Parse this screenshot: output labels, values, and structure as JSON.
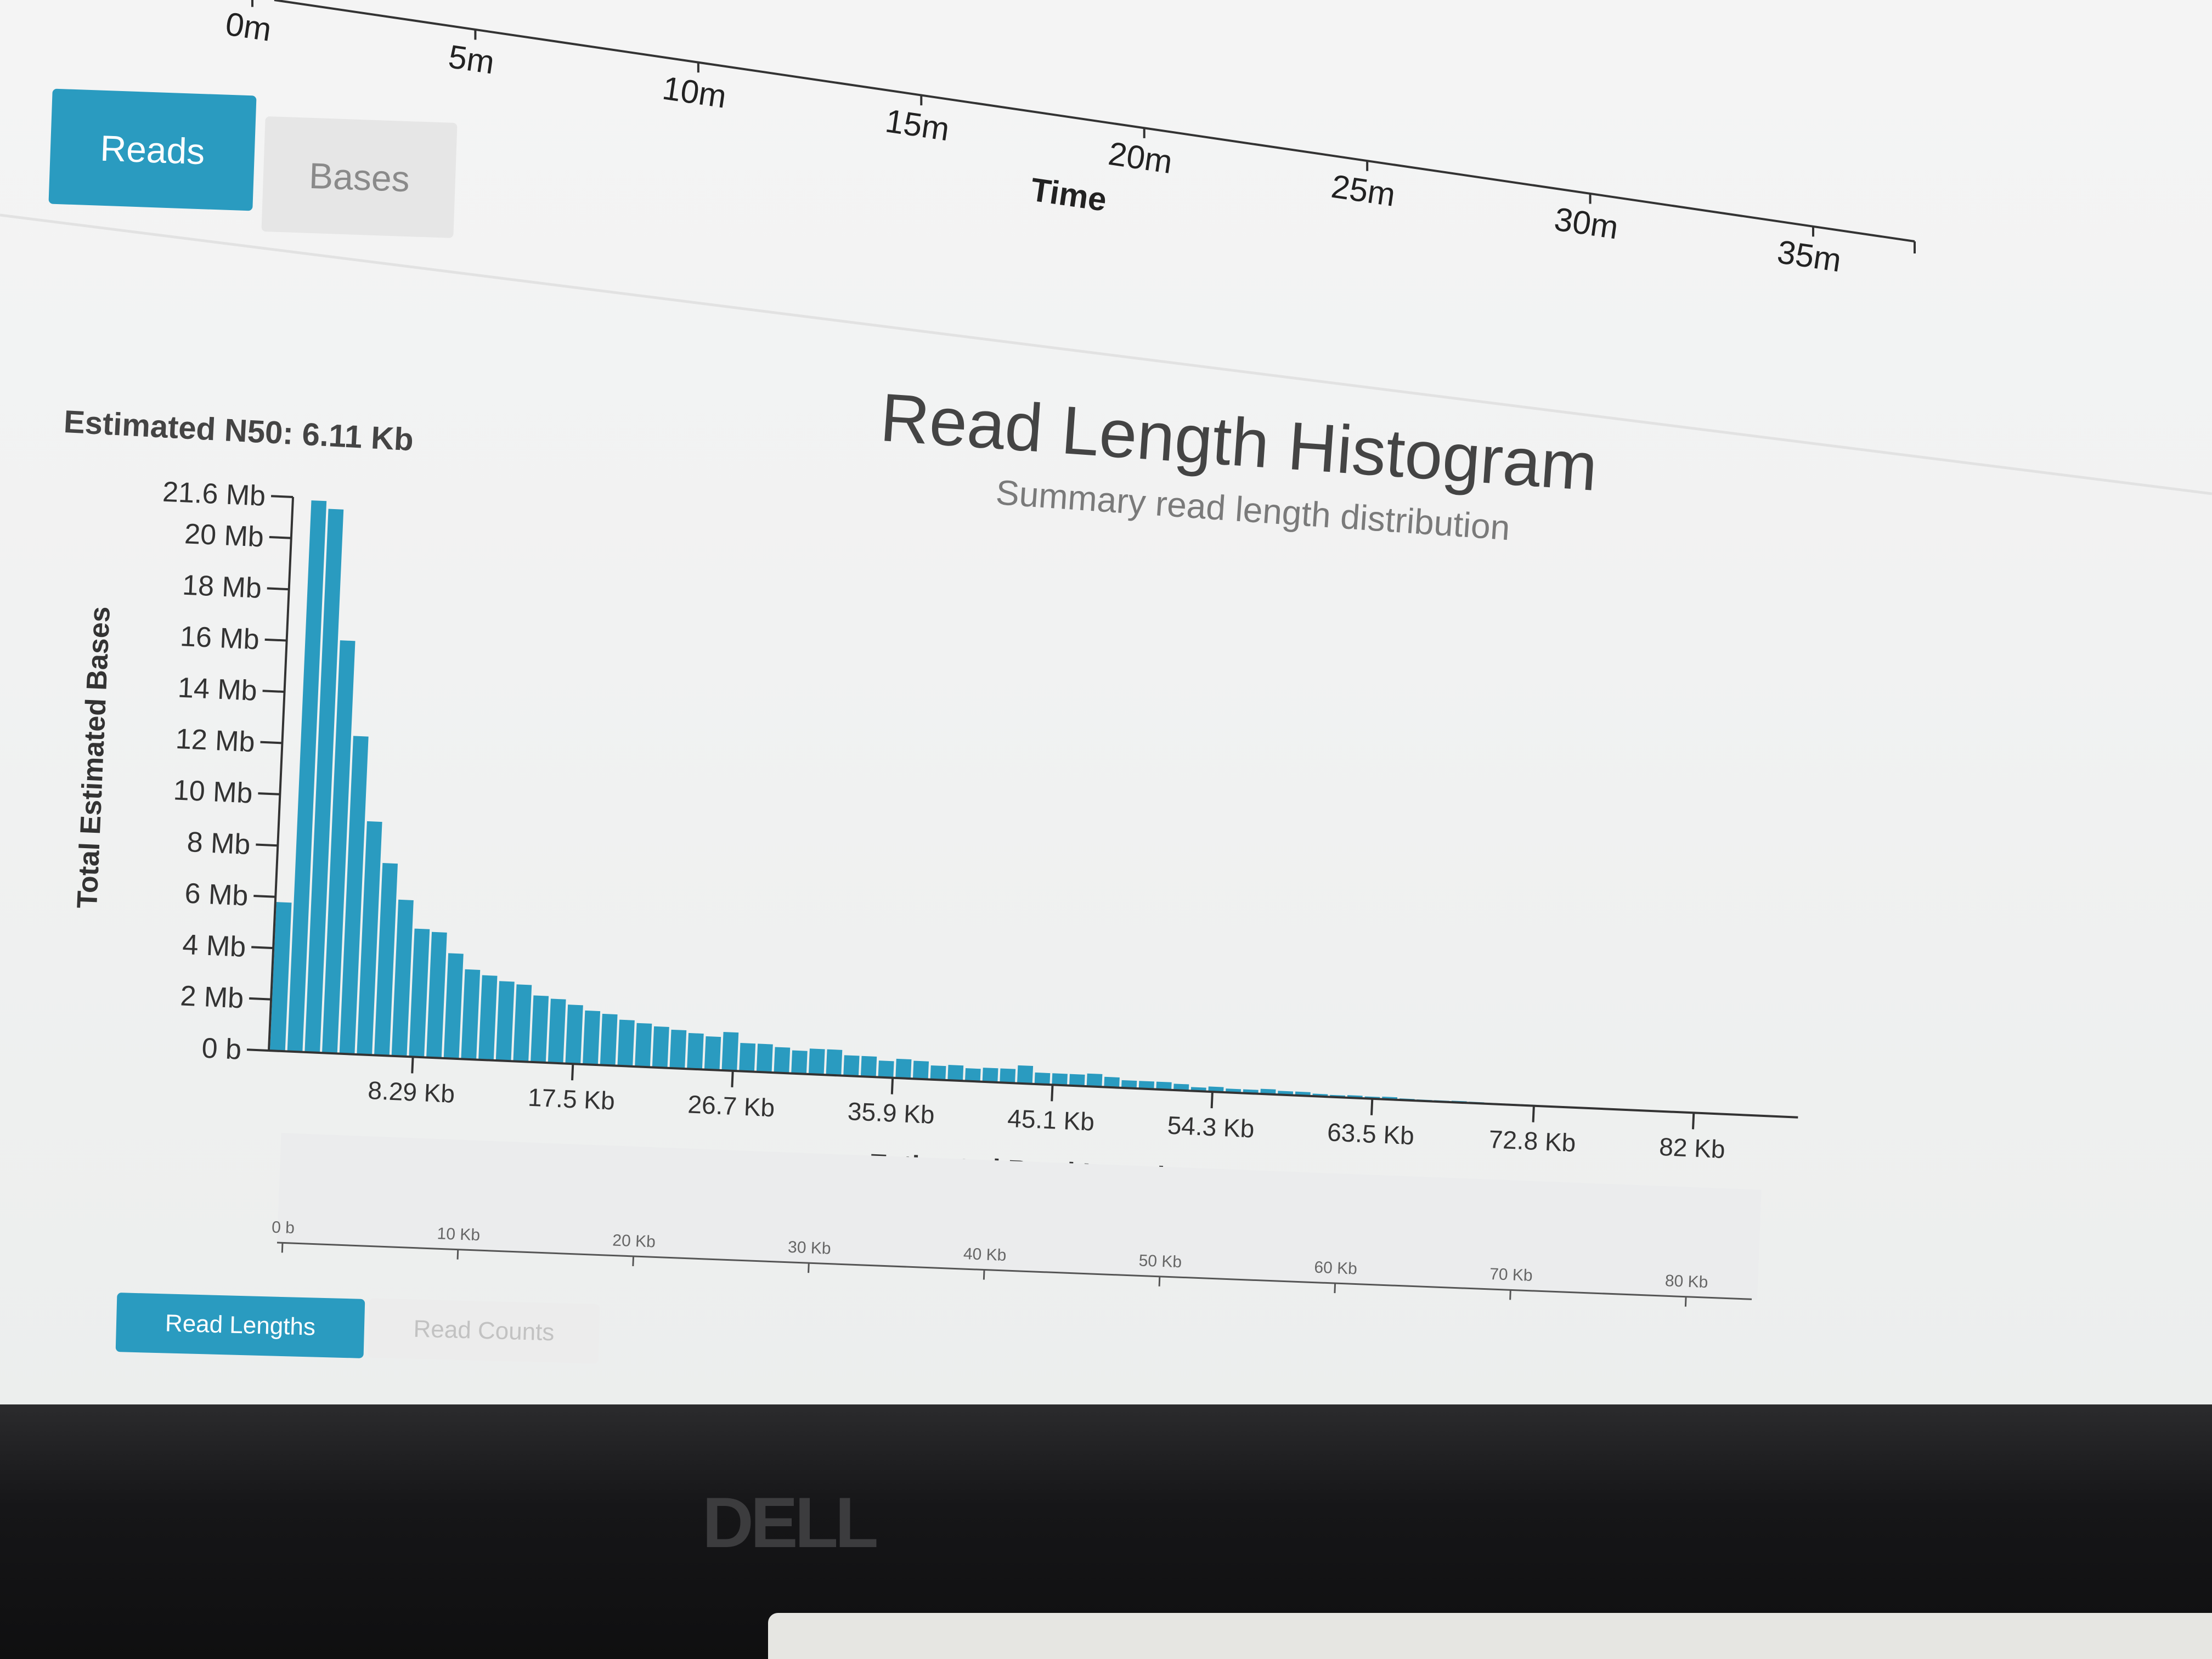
{
  "timeline": {
    "ticks": [
      "0m",
      "5m",
      "10m",
      "15m",
      "20m",
      "25m",
      "30m",
      "35m"
    ],
    "axis_label": "Time"
  },
  "top_tabs": {
    "reads": "Reads",
    "bases": "Bases",
    "active": "reads"
  },
  "histogram": {
    "title": "Read Length Histogram",
    "subtitle": "Summary read length distribution",
    "n50_label": "Estimated N50: 6.11 Kb"
  },
  "chart_data": {
    "type": "bar",
    "title": "Read Length Histogram",
    "subtitle": "Summary read length distribution",
    "xlabel": "Estimated Read Length",
    "ylabel": "Total Estimated Bases",
    "ylim_mb": [
      0,
      21.6
    ],
    "xlim_kb": [
      0,
      88
    ],
    "bin_width_kb": 1.0,
    "x_tick_labels": [
      "8.29 Kb",
      "17.5 Kb",
      "26.7 Kb",
      "35.9 Kb",
      "45.1 Kb",
      "54.3 Kb",
      "63.5 Kb",
      "72.8 Kb",
      "82 Kb"
    ],
    "x_tick_values_kb": [
      8.29,
      17.5,
      26.7,
      35.9,
      45.1,
      54.3,
      63.5,
      72.8,
      82.0
    ],
    "y_tick_labels": [
      "0 b",
      "2 Mb",
      "4 Mb",
      "6 Mb",
      "8 Mb",
      "10 Mb",
      "12 Mb",
      "14 Mb",
      "16 Mb",
      "18 Mb",
      "20 Mb",
      "21.6 Mb"
    ],
    "y_tick_values_mb": [
      0,
      2,
      4,
      6,
      8,
      10,
      12,
      14,
      16,
      18,
      20,
      21.6
    ],
    "grid": false,
    "values_mb": [
      5.8,
      21.5,
      21.2,
      16.1,
      12.4,
      9.1,
      7.5,
      6.1,
      5.0,
      4.9,
      4.1,
      3.5,
      3.3,
      3.1,
      3.0,
      2.6,
      2.5,
      2.3,
      2.1,
      2.0,
      1.8,
      1.7,
      1.6,
      1.5,
      1.4,
      1.3,
      1.5,
      1.1,
      1.1,
      1.0,
      0.9,
      1.0,
      1.0,
      0.8,
      0.8,
      0.65,
      0.75,
      0.7,
      0.55,
      0.6,
      0.5,
      0.55,
      0.55,
      0.7,
      0.45,
      0.45,
      0.45,
      0.5,
      0.4,
      0.3,
      0.3,
      0.3,
      0.25,
      0.15,
      0.2,
      0.15,
      0.15,
      0.2,
      0.15,
      0.15,
      0.1,
      0.08,
      0.1,
      0.08,
      0.1,
      0.06,
      0.05,
      0.05,
      0.06,
      0.05,
      0.04,
      0.04,
      0.04,
      0.03,
      0.03,
      0.03,
      0.02,
      0.02,
      0.02,
      0.02,
      0.02,
      0.01,
      0.01,
      0.01,
      0.01,
      0.01,
      0.01,
      0.01
    ]
  },
  "brush_axis": {
    "ticks": [
      "0 b",
      "10 Kb",
      "20 Kb",
      "30 Kb",
      "40 Kb",
      "50 Kb",
      "60 Kb",
      "70 Kb",
      "80 Kb"
    ]
  },
  "bottom_tabs": {
    "read_lengths": "Read Lengths",
    "read_counts": "Read Counts",
    "active": "read_lengths"
  },
  "bezel": {
    "logo": "DELL"
  },
  "colors": {
    "bar": "#2a9bc0",
    "active_button": "#2a9bc0",
    "text": "#333333"
  }
}
